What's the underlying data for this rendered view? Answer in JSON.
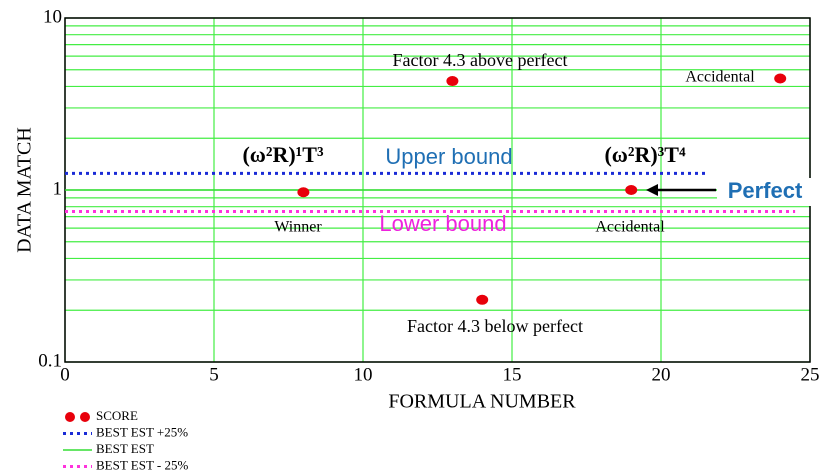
{
  "chart_data": {
    "type": "scatter",
    "xlabel": "FORMULA NUMBER",
    "ylabel": "DATA MATCH",
    "xlim": [
      0,
      25
    ],
    "ylim": [
      0.1,
      10
    ],
    "log_y": true,
    "grid": true,
    "grid_color": "#44ee44",
    "xticks": [
      0,
      5,
      10,
      15,
      20,
      25
    ],
    "yticks": [
      0.1,
      1,
      10
    ],
    "minor_yticks": [
      0.2,
      0.3,
      0.4,
      0.5,
      0.6,
      0.7,
      0.8,
      0.9,
      2,
      3,
      4,
      5,
      6,
      7,
      8,
      9
    ],
    "legend": "bottom-left",
    "series": [
      {
        "name": "SCORE",
        "color": "#e8000b",
        "style": "points",
        "x": [
          8,
          13,
          14,
          19,
          24
        ],
        "values": [
          0.97,
          4.3,
          0.23,
          1.0,
          4.45
        ]
      },
      {
        "name": "BEST EST +25%",
        "color": "#1a2bd6",
        "style": "dotted",
        "x": [
          0,
          21.5
        ],
        "values": [
          1.25,
          1.25
        ]
      },
      {
        "name": "BEST EST",
        "color": "#33dd33",
        "style": "solid",
        "x": [
          0,
          25
        ],
        "values": [
          1,
          1
        ]
      },
      {
        "name": "BEST EST - 25%",
        "color": "#ff33dd",
        "style": "dotted",
        "x": [
          0,
          24.5
        ],
        "values": [
          0.75,
          0.75
        ]
      }
    ],
    "annotations": [
      {
        "text": "Factor 4.3 above perfect"
      },
      {
        "text": "Accidental"
      },
      {
        "text": "(ω²R)¹T³"
      },
      {
        "text": "Upper bound",
        "color": "#1f6fb4"
      },
      {
        "text": "(ω²R)³T⁴"
      },
      {
        "text": "Perfect",
        "color": "#1f6fb4"
      },
      {
        "text": "Winner"
      },
      {
        "text": "Lower bound",
        "color": "#ee22dd"
      },
      {
        "text": "Accidental"
      },
      {
        "text": "Factor 4.3 below perfect"
      }
    ]
  }
}
